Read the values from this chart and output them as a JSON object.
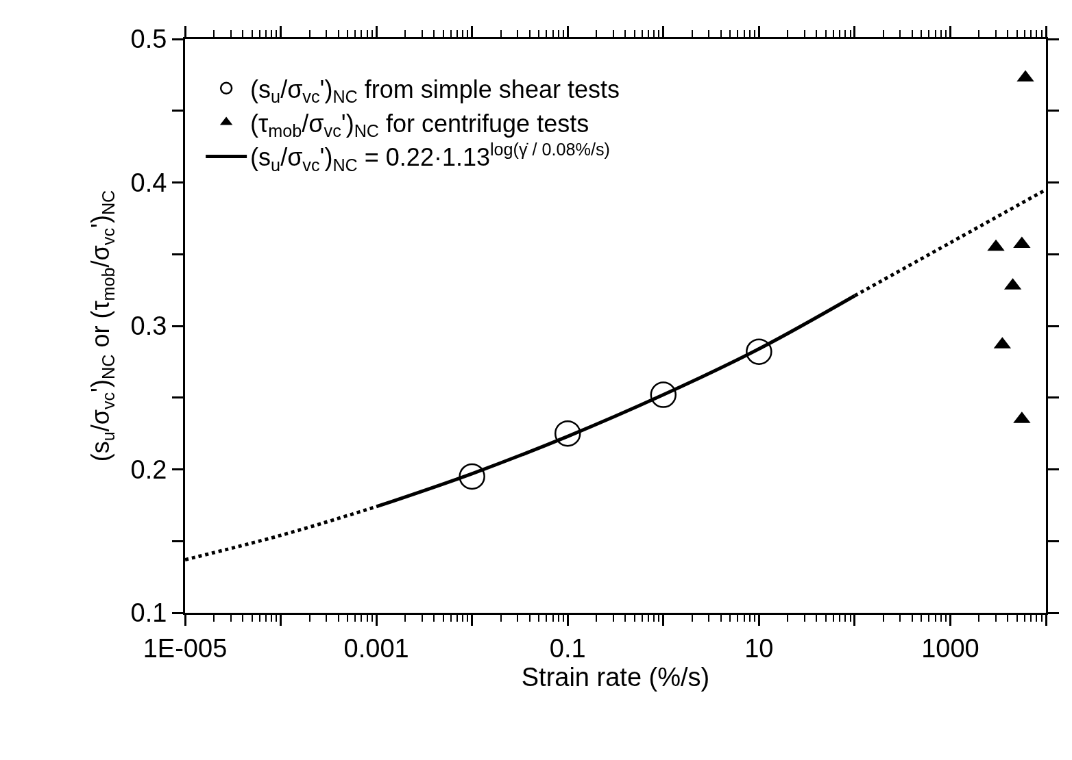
{
  "chart_data": {
    "type": "scatter",
    "xlabel": "Strain rate (%/s)",
    "ylabel": "(s$_{u}$/σ$_{vc}$')$_{NC}$ or (τ$_{mob}$/σ$_{vc}$')$_{NC}$",
    "log": "x",
    "legend": "top left",
    "xlim": [
      1e-05,
      10000
    ],
    "xticks": [
      {
        "value": 1e-05,
        "label": "1E-005"
      },
      {
        "value": 0.0001,
        "label": null
      },
      0.001,
      {
        "value": 0.01,
        "label": null
      },
      0.1,
      {
        "value": 1,
        "label": null
      },
      10,
      {
        "value": 100,
        "label": null
      },
      1000,
      {
        "value": 10000,
        "label": null
      }
    ],
    "ylim": [
      0.1,
      0.5
    ],
    "yticks": [
      0.1,
      {
        "value": 0.15,
        "label": null
      },
      0.2,
      {
        "value": 0.25,
        "label": null
      },
      0.3,
      {
        "value": 0.35,
        "label": null
      },
      0.4,
      {
        "value": 0.45,
        "label": null
      },
      0.5
    ],
    "series": [
      {
        "name": "(s$_{u}$/σ$_{vc}$')$_{NC}$ from simple shear tests",
        "marker": "circle",
        "color": "#000000",
        "x": [
          0.01,
          0.1,
          1,
          10
        ],
        "values": [
          0.195,
          0.225,
          0.252,
          0.282
        ]
      },
      {
        "name": "(τ$_{mob}$/σ$_{vc}$')$_{NC}$ for centrifuge tests",
        "marker": "triangle",
        "color": "#000000",
        "x": [
          6100,
          3000,
          5600,
          4500,
          3500,
          5600
        ],
        "values": [
          0.473,
          0.355,
          0.357,
          0.328,
          0.287,
          0.235
        ]
      },
      {
        "name": "(s$_{u}$/σ$_{vc}$')$_{NC}$ = 0.22·1.13$^{log(γ̇ / 0.08%/s)}$",
        "type": "line",
        "line_style": "solid",
        "color": "#000000",
        "x": [
          0.001,
          0.01,
          0.1,
          1,
          10,
          100
        ],
        "values": [
          0.174,
          0.197,
          0.223,
          0.252,
          0.284,
          0.321
        ]
      },
      {
        "type": "line",
        "line_style": "dotted",
        "color": "#000000",
        "x": [
          1e-05,
          0.0001,
          0.001
        ],
        "values": [
          0.137,
          0.154,
          0.174
        ]
      },
      {
        "type": "line",
        "line_style": "dotted",
        "color": "#000000",
        "x": [
          100,
          1000,
          10000
        ],
        "values": [
          0.321,
          0.358,
          0.395
        ]
      }
    ]
  }
}
